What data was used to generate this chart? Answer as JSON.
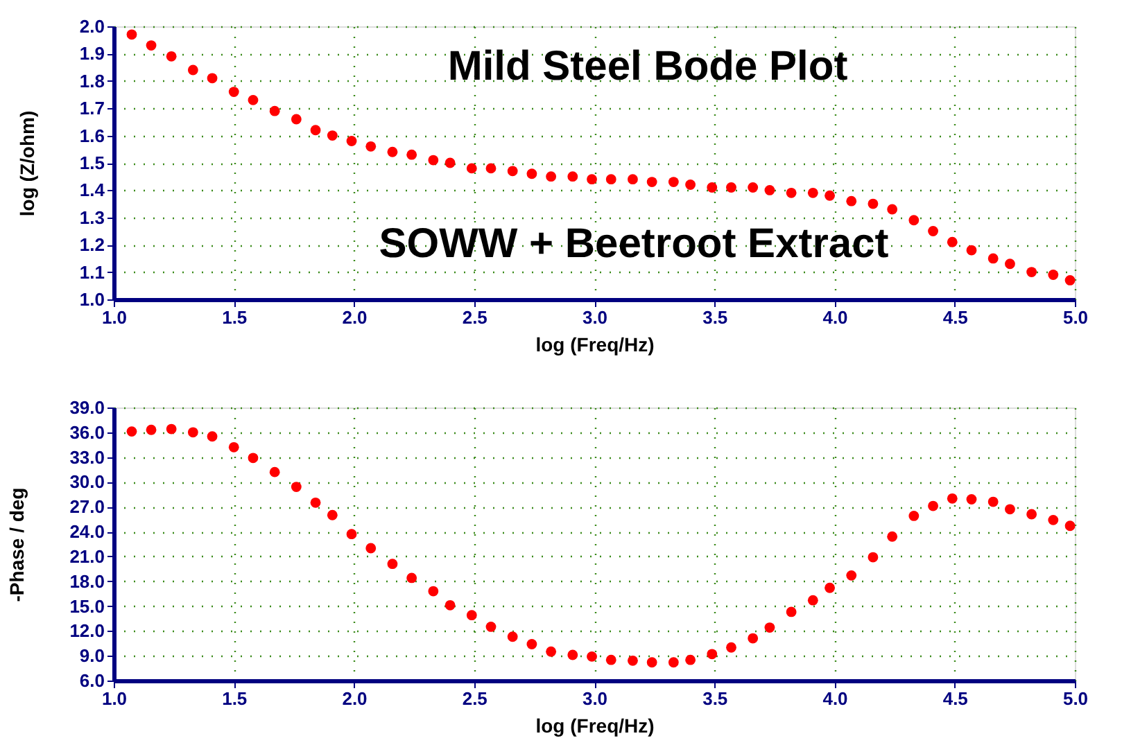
{
  "chart_data": [
    {
      "type": "scatter",
      "annotations": [
        "Mild Steel  Bode Plot",
        "SOWW + Beetroot Extract"
      ],
      "xlabel": "log (Freq/Hz)",
      "ylabel": "log (Z/ohm)",
      "x": [
        1.075,
        1.156,
        1.24,
        1.33,
        1.41,
        1.5,
        1.58,
        1.67,
        1.76,
        1.84,
        1.91,
        1.99,
        2.07,
        2.16,
        2.24,
        2.33,
        2.4,
        2.49,
        2.57,
        2.66,
        2.74,
        2.82,
        2.91,
        2.99,
        3.07,
        3.16,
        3.24,
        3.33,
        3.4,
        3.49,
        3.57,
        3.66,
        3.73,
        3.82,
        3.91,
        3.98,
        4.07,
        4.16,
        4.24,
        4.33,
        4.41,
        4.49,
        4.57,
        4.66,
        4.73,
        4.82,
        4.91,
        4.98
      ],
      "series": [
        {
          "color": "#ff0000",
          "values": [
            1.97,
            1.93,
            1.89,
            1.84,
            1.81,
            1.76,
            1.73,
            1.69,
            1.66,
            1.62,
            1.6,
            1.58,
            1.56,
            1.54,
            1.53,
            1.51,
            1.5,
            1.48,
            1.48,
            1.47,
            1.46,
            1.45,
            1.45,
            1.44,
            1.44,
            1.44,
            1.43,
            1.43,
            1.42,
            1.41,
            1.41,
            1.41,
            1.4,
            1.39,
            1.39,
            1.38,
            1.36,
            1.35,
            1.33,
            1.29,
            1.25,
            1.21,
            1.18,
            1.15,
            1.13,
            1.1,
            1.09,
            1.07
          ]
        }
      ],
      "marker": "circle",
      "grid": true,
      "xlim": [
        1.0,
        5.0
      ],
      "xticks": [
        {
          "value": 1,
          "label": "1.0"
        },
        {
          "value": 1.5,
          "label": "1.5"
        },
        {
          "value": 2,
          "label": "2.0"
        },
        {
          "value": 2.5,
          "label": "2.5"
        },
        {
          "value": 3,
          "label": "3.0"
        },
        {
          "value": 3.5,
          "label": "3.5"
        },
        {
          "value": 4,
          "label": "4.0"
        },
        {
          "value": 4.5,
          "label": "4.5"
        },
        {
          "value": 5,
          "label": "5.0"
        }
      ],
      "ylim": [
        1.0,
        2.0
      ],
      "yticks": [
        {
          "value": 1,
          "label": "1.0"
        },
        1.1,
        1.2,
        1.3,
        1.4,
        1.5,
        1.6,
        1.7,
        1.8,
        1.9,
        {
          "value": 2,
          "label": "2.0"
        }
      ]
    },
    {
      "type": "scatter",
      "xlabel": "log (Freq/Hz)",
      "ylabel": "-Phase / deg",
      "x": [
        1.075,
        1.156,
        1.24,
        1.33,
        1.41,
        1.5,
        1.58,
        1.67,
        1.76,
        1.84,
        1.91,
        1.99,
        2.07,
        2.16,
        2.24,
        2.33,
        2.4,
        2.49,
        2.57,
        2.66,
        2.74,
        2.82,
        2.91,
        2.99,
        3.07,
        3.16,
        3.24,
        3.33,
        3.4,
        3.49,
        3.57,
        3.66,
        3.73,
        3.82,
        3.91,
        3.98,
        4.07,
        4.16,
        4.24,
        4.33,
        4.41,
        4.49,
        4.57,
        4.66,
        4.73,
        4.82,
        4.91,
        4.98
      ],
      "series": [
        {
          "color": "#ff0000",
          "values": [
            36.1,
            36.3,
            36.4,
            36.0,
            35.5,
            34.2,
            32.9,
            31.2,
            29.4,
            27.5,
            26.0,
            23.7,
            22.0,
            20.1,
            18.4,
            16.8,
            15.1,
            13.9,
            12.5,
            11.3,
            10.4,
            9.5,
            9.1,
            8.9,
            8.5,
            8.4,
            8.2,
            8.2,
            8.5,
            9.2,
            10.0,
            11.1,
            12.4,
            14.3,
            15.7,
            17.2,
            18.7,
            20.9,
            23.4,
            25.9,
            27.1,
            28.0,
            27.9,
            27.6,
            26.7,
            26.1,
            25.4,
            24.7
          ]
        }
      ],
      "marker": "circle",
      "grid": true,
      "xlim": [
        1.0,
        5.0
      ],
      "xticks": [
        {
          "value": 1,
          "label": "1.0"
        },
        {
          "value": 1.5,
          "label": "1.5"
        },
        {
          "value": 2,
          "label": "2.0"
        },
        {
          "value": 2.5,
          "label": "2.5"
        },
        {
          "value": 3,
          "label": "3.0"
        },
        {
          "value": 3.5,
          "label": "3.5"
        },
        {
          "value": 4,
          "label": "4.0"
        },
        {
          "value": 4.5,
          "label": "4.5"
        },
        {
          "value": 5,
          "label": "5.0"
        }
      ],
      "ylim": [
        6.0,
        39.0
      ],
      "yticks": [
        {
          "value": 6,
          "label": "6.0"
        },
        {
          "value": 9,
          "label": "9.0"
        },
        {
          "value": 12,
          "label": "12.0"
        },
        {
          "value": 15,
          "label": "15.0"
        },
        {
          "value": 18,
          "label": "18.0"
        },
        {
          "value": 21,
          "label": "21.0"
        },
        {
          "value": 24,
          "label": "24.0"
        },
        {
          "value": 27,
          "label": "27.0"
        },
        {
          "value": 30,
          "label": "30.0"
        },
        {
          "value": 33,
          "label": "33.0"
        },
        {
          "value": 36,
          "label": "36.0"
        },
        {
          "value": 39,
          "label": "39.0"
        }
      ]
    }
  ]
}
